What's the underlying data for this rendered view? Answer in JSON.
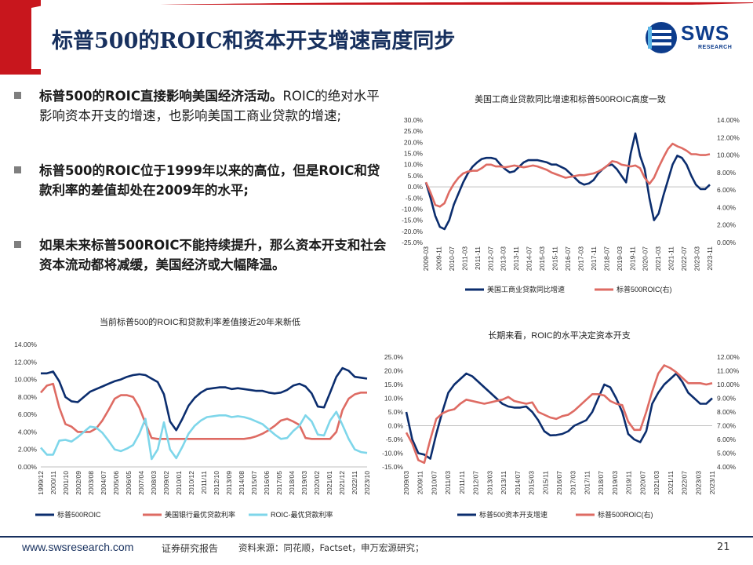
{
  "header": {
    "title": "标普500的ROIC和资本开支增速高度同步",
    "logo_text": "SWS",
    "logo_sub": "RESEARCH"
  },
  "bullets": [
    {
      "bold": "标普500的ROIC直接影响美国经济活动。",
      "normal": "ROIC的绝对水平影响资本开支的增速，也影响美国工商业贷款的增速;"
    },
    {
      "bold": "标普500的ROIC位于1999年以来的高位，但是ROIC和贷款利率的差值却处在2009年的水平;",
      "normal": ""
    },
    {
      "bold": "如果未来标普500ROIC不能持续提升，那么资本开支和社会资本流动都将减缓，美国经济或大幅降温。",
      "normal": ""
    }
  ],
  "footer": {
    "url": "www.swsresearch.com",
    "report": "证券研究报告",
    "source": "资料来源：同花顺，Factset，申万宏源研究；",
    "page": "21"
  },
  "colors": {
    "navy": "#0b2d6e",
    "red": "#de6b63",
    "cyan": "#7ed6ea",
    "title": "#17305e",
    "band": "#c8161d"
  },
  "chart_data": [
    {
      "id": "c1",
      "type": "line",
      "title": "美国工商业贷款同比增速和标普500ROIC高度一致",
      "xtick_labels": [
        "2009-03",
        "2009-11",
        "2010-07",
        "2011-03",
        "2011-11",
        "2012-07",
        "2013-03",
        "2013-11",
        "2014-07",
        "2015-03",
        "2015-11",
        "2016-07",
        "2017-03",
        "2017-11",
        "2018-07",
        "2019-03",
        "2019-11",
        "2020-07",
        "2021-03",
        "2021-11",
        "2022-07",
        "2023-03",
        "2023-11"
      ],
      "ylim_left": [
        -0.25,
        0.3
      ],
      "yticks_left": [
        "-25.0%",
        "-20.0%",
        "-15.0%",
        "-10.0%",
        "-5.0%",
        "0.0%",
        "5.0%",
        "10.0%",
        "15.0%",
        "20.0%",
        "25.0%",
        "30.0%"
      ],
      "ylim_right": [
        0.0,
        0.14
      ],
      "yticks_right": [
        "0.00%",
        "2.00%",
        "4.00%",
        "6.00%",
        "8.00%",
        "10.00%",
        "12.00%",
        "14.00%"
      ],
      "series": [
        {
          "name": "美国工商业贷款同比增速",
          "axis": "left",
          "color": "#0b2d6e",
          "values": [
            0.02,
            -0.05,
            -0.13,
            -0.18,
            -0.19,
            -0.15,
            -0.08,
            -0.03,
            0.02,
            0.06,
            0.09,
            0.11,
            0.125,
            0.13,
            0.13,
            0.125,
            0.1,
            0.08,
            0.065,
            0.07,
            0.09,
            0.11,
            0.12,
            0.12,
            0.12,
            0.115,
            0.11,
            0.1,
            0.1,
            0.09,
            0.08,
            0.06,
            0.04,
            0.02,
            0.01,
            0.015,
            0.03,
            0.06,
            0.08,
            0.095,
            0.1,
            0.08,
            0.05,
            0.02,
            0.15,
            0.24,
            0.14,
            0.08,
            -0.05,
            -0.15,
            -0.12,
            -0.04,
            0.03,
            0.1,
            0.14,
            0.13,
            0.1,
            0.05,
            0.01,
            -0.01,
            -0.01,
            0.01
          ]
        },
        {
          "name": "标普500ROIC(右)",
          "axis": "right",
          "color": "#de6b63",
          "values": [
            0.069,
            0.057,
            0.043,
            0.041,
            0.045,
            0.058,
            0.067,
            0.074,
            0.079,
            0.081,
            0.082,
            0.082,
            0.085,
            0.089,
            0.089,
            0.087,
            0.087,
            0.086,
            0.087,
            0.088,
            0.087,
            0.086,
            0.087,
            0.088,
            0.087,
            0.085,
            0.083,
            0.08,
            0.078,
            0.076,
            0.074,
            0.075,
            0.076,
            0.077,
            0.077,
            0.078,
            0.079,
            0.081,
            0.084,
            0.088,
            0.093,
            0.092,
            0.089,
            0.088,
            0.087,
            0.088,
            0.085,
            0.074,
            0.067,
            0.074,
            0.086,
            0.097,
            0.107,
            0.113,
            0.11,
            0.108,
            0.105,
            0.101,
            0.101,
            0.1,
            0.1,
            0.101
          ]
        }
      ]
    },
    {
      "id": "c2",
      "type": "line",
      "title": "当前标普500的ROIC和贷款利率差值接近20年来新低",
      "xtick_labels": [
        "1999/12",
        "2000/11",
        "2001/10",
        "2002/09",
        "2003/08",
        "2004/07",
        "2005/06",
        "2006/05",
        "2007/04",
        "2008/03",
        "2009/02",
        "2010/01",
        "2010/12",
        "2011/11",
        "2012/10",
        "2013/09",
        "2014/08",
        "2015/07",
        "2016/06",
        "2017/05",
        "2018/04",
        "2019/03",
        "2020/02",
        "2021/01",
        "2021/12",
        "2022/11",
        "2023/10"
      ],
      "ylim": [
        0.0,
        0.14
      ],
      "yticks": [
        "0.00%",
        "2.00%",
        "4.00%",
        "6.00%",
        "8.00%",
        "10.00%",
        "12.00%",
        "14.00%"
      ],
      "series": [
        {
          "name": "标普500ROIC",
          "color": "#0b2d6e",
          "values": [
            0.107,
            0.107,
            0.109,
            0.098,
            0.08,
            0.075,
            0.074,
            0.08,
            0.086,
            0.089,
            0.092,
            0.095,
            0.098,
            0.1,
            0.103,
            0.105,
            0.106,
            0.105,
            0.101,
            0.097,
            0.083,
            0.052,
            0.042,
            0.055,
            0.07,
            0.079,
            0.085,
            0.089,
            0.09,
            0.091,
            0.091,
            0.089,
            0.09,
            0.089,
            0.088,
            0.087,
            0.087,
            0.085,
            0.084,
            0.085,
            0.088,
            0.093,
            0.095,
            0.092,
            0.084,
            0.069,
            0.068,
            0.085,
            0.103,
            0.113,
            0.11,
            0.103,
            0.102,
            0.101
          ]
        },
        {
          "name": "美国银行最优贷款利率",
          "color": "#de6b63",
          "values": [
            0.085,
            0.093,
            0.095,
            0.068,
            0.049,
            0.046,
            0.04,
            0.04,
            0.04,
            0.044,
            0.053,
            0.065,
            0.078,
            0.082,
            0.082,
            0.08,
            0.068,
            0.05,
            0.033,
            0.032,
            0.032,
            0.032,
            0.032,
            0.032,
            0.032,
            0.032,
            0.032,
            0.032,
            0.032,
            0.032,
            0.032,
            0.032,
            0.032,
            0.032,
            0.033,
            0.035,
            0.038,
            0.042,
            0.047,
            0.053,
            0.055,
            0.052,
            0.048,
            0.033,
            0.032,
            0.032,
            0.032,
            0.032,
            0.04,
            0.065,
            0.078,
            0.083,
            0.085,
            0.085
          ]
        },
        {
          "name": "ROIC-最优贷款利率",
          "color": "#7ed6ea",
          "values": [
            0.022,
            0.014,
            0.014,
            0.03,
            0.031,
            0.029,
            0.034,
            0.04,
            0.046,
            0.045,
            0.039,
            0.03,
            0.02,
            0.018,
            0.021,
            0.025,
            0.038,
            0.055,
            0.009,
            0.02,
            0.051,
            0.02,
            0.01,
            0.023,
            0.038,
            0.047,
            0.053,
            0.057,
            0.058,
            0.059,
            0.059,
            0.057,
            0.058,
            0.057,
            0.055,
            0.052,
            0.049,
            0.043,
            0.037,
            0.032,
            0.033,
            0.041,
            0.047,
            0.059,
            0.052,
            0.037,
            0.036,
            0.053,
            0.063,
            0.048,
            0.032,
            0.02,
            0.017,
            0.016
          ]
        }
      ]
    },
    {
      "id": "c3",
      "type": "line",
      "title": "长期来看，ROIC的水平决定资本开支",
      "xtick_labels": [
        "2009/03",
        "2009/11",
        "2010/07",
        "2011/03",
        "2011/11",
        "2012/07",
        "2013/03",
        "2013/11",
        "2014/07",
        "2015/03",
        "2015/11",
        "2016/07",
        "2017/03",
        "2017/11",
        "2018/07",
        "2019/03",
        "2019/11",
        "2020/07",
        "2021/03",
        "2021/11",
        "2022/07",
        "2023/03",
        "2023/11"
      ],
      "ylim_left": [
        -0.15,
        0.25
      ],
      "yticks_left": [
        "-15.0%",
        "-10.0%",
        "-5.0%",
        "0.0%",
        "5.0%",
        "10.0%",
        "15.0%",
        "20.0%",
        "25.0%"
      ],
      "ylim_right": [
        0.04,
        0.12
      ],
      "yticks_right": [
        "4.00%",
        "5.00%",
        "6.00%",
        "7.00%",
        "8.00%",
        "9.00%",
        "10.00%",
        "11.00%",
        "12.00%"
      ],
      "series": [
        {
          "name": "标普500资本开支增速",
          "axis": "left",
          "color": "#0b2d6e",
          "values": [
            0.05,
            -0.05,
            -0.1,
            -0.105,
            -0.12,
            -0.03,
            0.05,
            0.12,
            0.15,
            0.17,
            0.19,
            0.18,
            0.16,
            0.14,
            0.12,
            0.1,
            0.08,
            0.07,
            0.066,
            0.066,
            0.07,
            0.05,
            0.02,
            -0.02,
            -0.035,
            -0.034,
            -0.03,
            -0.02,
            0.0,
            0.01,
            0.02,
            0.05,
            0.1,
            0.15,
            0.14,
            0.1,
            0.05,
            -0.03,
            -0.05,
            -0.06,
            -0.02,
            0.08,
            0.12,
            0.15,
            0.17,
            0.19,
            0.16,
            0.12,
            0.1,
            0.08,
            0.08,
            0.1
          ]
        },
        {
          "name": "标普500ROIC(右)",
          "axis": "right",
          "color": "#de6b63",
          "values": [
            0.065,
            0.057,
            0.045,
            0.043,
            0.06,
            0.075,
            0.079,
            0.081,
            0.082,
            0.086,
            0.089,
            0.088,
            0.087,
            0.086,
            0.087,
            0.088,
            0.089,
            0.091,
            0.088,
            0.087,
            0.086,
            0.087,
            0.08,
            0.078,
            0.076,
            0.075,
            0.077,
            0.078,
            0.081,
            0.085,
            0.089,
            0.093,
            0.093,
            0.092,
            0.088,
            0.086,
            0.085,
            0.073,
            0.067,
            0.067,
            0.08,
            0.095,
            0.108,
            0.114,
            0.112,
            0.109,
            0.105,
            0.101,
            0.101,
            0.101,
            0.1,
            0.101
          ]
        }
      ]
    }
  ]
}
